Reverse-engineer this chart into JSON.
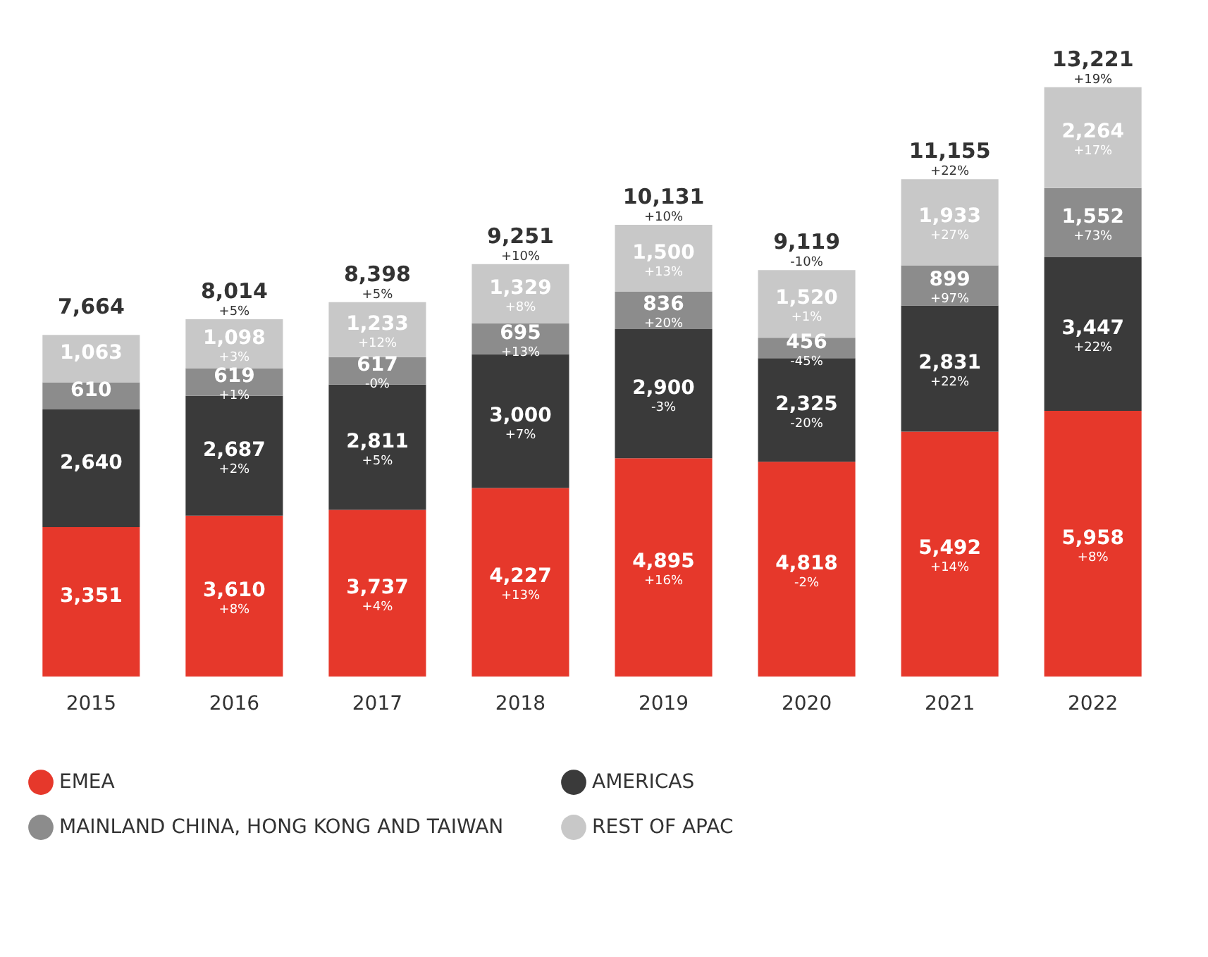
{
  "chart_data": {
    "type": "bar",
    "stacked": true,
    "legend": "bottom",
    "tick_labels": "x",
    "categories": [
      "2015",
      "2016",
      "2017",
      "2018",
      "2019",
      "2020",
      "2021",
      "2022"
    ],
    "series": [
      {
        "name": "EMEA",
        "color": "#e6382b",
        "values": [
          3351,
          3610,
          3737,
          4227,
          4895,
          4818,
          5492,
          5958
        ],
        "value_labels": [
          "3,351",
          "3,610\n+8%",
          "3,737\n+4%",
          "4,227\n+13%",
          "4,895\n+16%",
          "4,818\n-2%",
          "5,492\n+14%",
          "5,958\n+8%"
        ]
      },
      {
        "name": "AMERICAS",
        "color": "#3a3a3a",
        "values": [
          2640,
          2687,
          2811,
          3000,
          2900,
          2325,
          2831,
          3447
        ],
        "value_labels": [
          "2,640",
          "2,687\n+2%",
          "2,811\n+5%",
          "3,000\n+7%",
          "2,900\n-3%",
          "2,325\n-20%",
          "2,831\n+22%",
          "3,447\n+22%"
        ]
      },
      {
        "name": "MAINLAND CHINA, HONG KONG AND TAIWAN",
        "color": "#8c8c8c",
        "values": [
          610,
          619,
          617,
          695,
          836,
          456,
          899,
          1552
        ],
        "value_labels": [
          "610",
          "619\n+1%",
          "617\n-0%",
          "695\n+13%",
          "836\n+20%",
          "456\n-45%",
          "899\n+97%",
          "1,552\n+73%"
        ]
      },
      {
        "name": "REST OF APAC",
        "color": "#c8c8c8",
        "values": [
          1063,
          1098,
          1233,
          1329,
          1500,
          1520,
          1933,
          2264
        ],
        "value_labels": [
          "1,063",
          "1,098\n+3%",
          "1,233\n+12%",
          "1,329\n+8%",
          "1,500\n+13%",
          "1,520\n+1%",
          "1,933\n+27%",
          "2,264\n+17%"
        ]
      }
    ],
    "totals": [
      "7,664",
      "8,014\n+5%",
      "8,398\n+5%",
      "9,251\n+10%",
      "10,131\n+10%",
      "9,119\n-10%",
      "11,155\n+22%",
      "13,221\n+19%"
    ]
  }
}
